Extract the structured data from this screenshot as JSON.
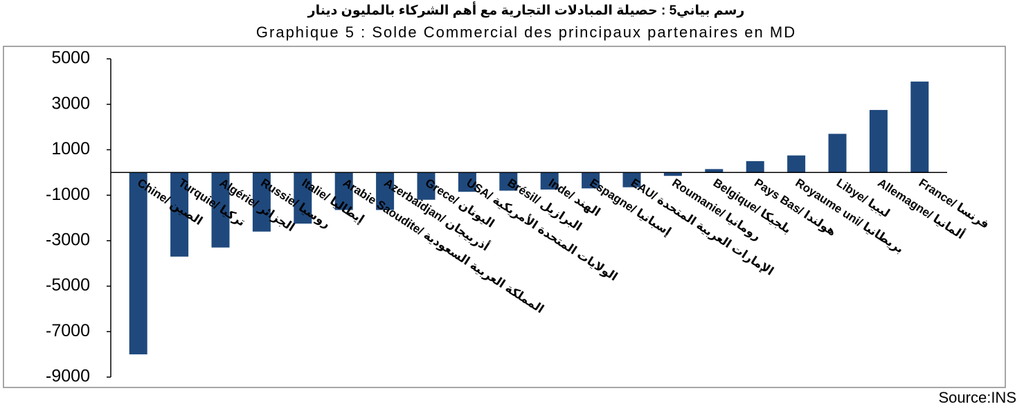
{
  "chart_data": {
    "type": "bar",
    "title_ar": "رسم بياني5 : حصيلة المبادلات التجارية مع أهم الشركاء بالمليون دينار",
    "title": "Graphique 5 : Solde Commercial des principaux partenaires en MD",
    "source": "Source:INS",
    "categories": [
      "Chine/ الصين",
      "Turquie/ تركيا",
      "Algérie/ الجزائر",
      "Russie/ روسيا",
      "Italie/ إيطاليا",
      "Arabie Saoudite/ المملكة العربية السعودية",
      "Azerbaidjan/ أذربيجان",
      "Grece/ اليونان",
      "USA/ الولايات المتحدة الأمريكية",
      "Brésil/ البرازيل",
      "Inde/ الهند",
      "Espagne/ إسبانيا",
      "EAU/ الإمارات العربية المتحدة",
      "Roumanie/ رومانيا",
      "Belgique/ بلجيكا",
      "Pays Bas/ هولندا",
      "Royaume uni/ بريطانيا",
      "Libye/ ليبيا",
      "Allemagne/ ألمانيا",
      "France/ فرنسا"
    ],
    "values": [
      -8000,
      -3700,
      -3300,
      -2600,
      -2250,
      -1650,
      -1650,
      -1200,
      -850,
      -800,
      -750,
      -700,
      -650,
      -150,
      150,
      500,
      750,
      1700,
      2750,
      4000
    ],
    "color": "#1f497d",
    "ylim": [
      -9000,
      5000
    ],
    "yticks": [
      5000,
      3000,
      1000,
      -1000,
      -3000,
      -5000,
      -7000,
      -9000
    ]
  }
}
